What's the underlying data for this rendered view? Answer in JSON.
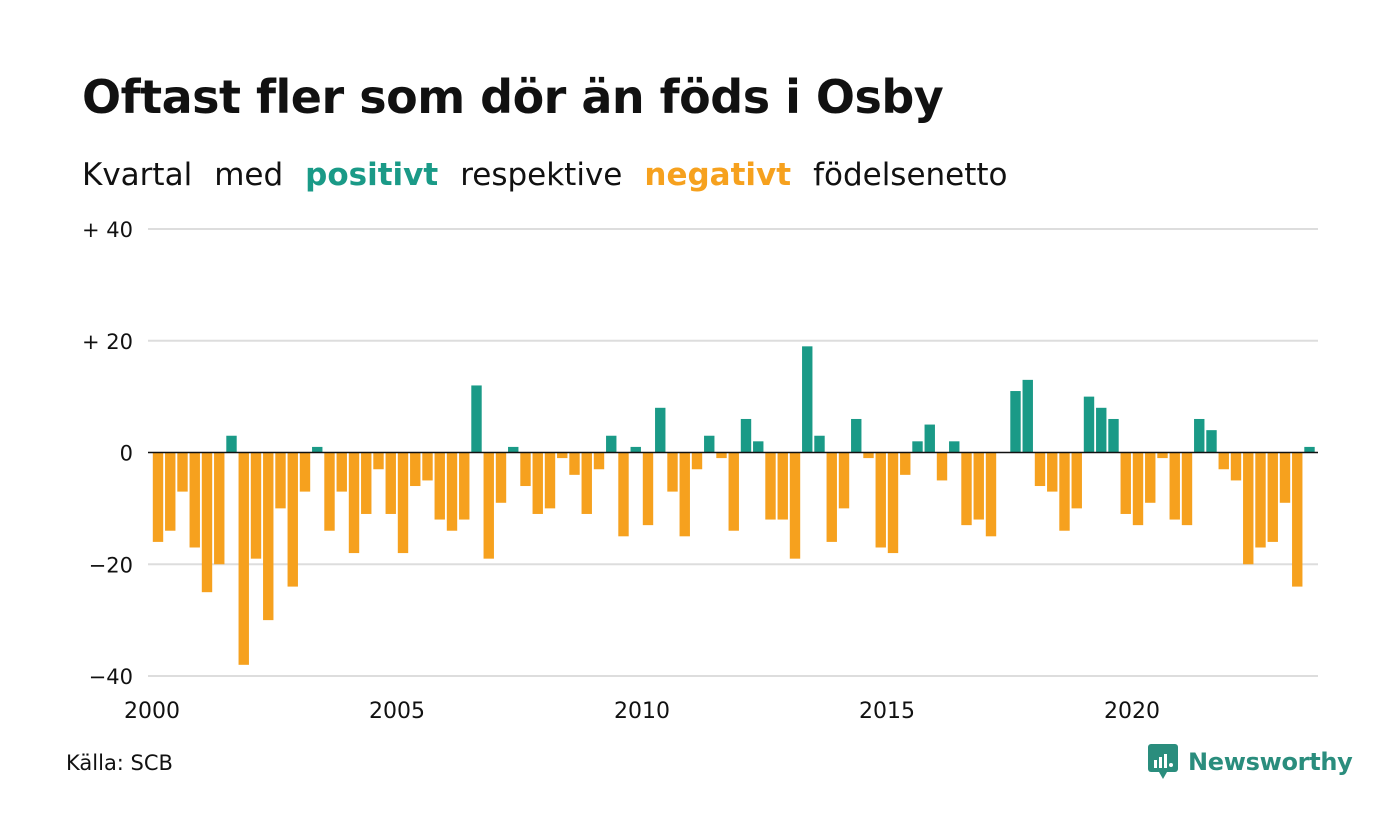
{
  "title": "Oftast fler som dör än föds i Osby",
  "subtitle": {
    "parts": [
      "Kvartal",
      "med",
      "positivt",
      "respektive",
      "negativt",
      "födelsenetto"
    ]
  },
  "source": "Källa: SCB",
  "brand": "Newsworthy",
  "colors": {
    "positive": "#1a9a87",
    "negative": "#f6a11e",
    "grid": "#dddddd",
    "axis": "#111111"
  },
  "chart_data": {
    "type": "bar",
    "title": "Oftast fler som dör än föds i Osby",
    "x_start": 2000,
    "x_step": 0.25,
    "xticks": [
      2000,
      2005,
      2010,
      2015,
      2020
    ],
    "xtick_labels": [
      "2000",
      "2005",
      "2010",
      "2015",
      "2020"
    ],
    "yticks": [
      40,
      20,
      0,
      -20,
      -40
    ],
    "ytick_labels": [
      "+ 40",
      "+ 20",
      "0",
      "−20",
      "−40"
    ],
    "ylim": [
      -40,
      40
    ],
    "grid": true,
    "values": [
      -16,
      -14,
      -7,
      -17,
      -25,
      -20,
      3,
      -38,
      -19,
      -30,
      -10,
      -24,
      -7,
      1,
      -14,
      -7,
      -18,
      -11,
      -3,
      -11,
      -18,
      -6,
      -5,
      -12,
      -14,
      -12,
      12,
      -19,
      -9,
      1,
      -6,
      -11,
      -10,
      -1,
      -4,
      -11,
      -3,
      3,
      -15,
      1,
      -13,
      8,
      -7,
      -15,
      -3,
      3,
      -1,
      -14,
      6,
      2,
      -12,
      -12,
      -19,
      19,
      3,
      -16,
      -10,
      6,
      -1,
      -17,
      -18,
      -4,
      2,
      5,
      -5,
      2,
      -13,
      -12,
      -15,
      0,
      11,
      13,
      -6,
      -7,
      -14,
      -10,
      10,
      8,
      6,
      -11,
      -13,
      -9,
      -1,
      -12,
      -13,
      6,
      4,
      -3,
      -5,
      -20,
      -17,
      -16,
      -9,
      -24,
      1
    ]
  }
}
